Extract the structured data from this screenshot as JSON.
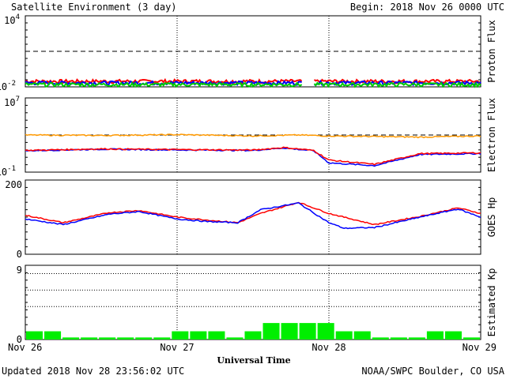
{
  "header": {
    "title": "Satellite Environment (3 day)",
    "begin": "Begin:  2018 Nov 26 0000 UTC"
  },
  "footer": {
    "updated": "Updated 2018 Nov 28 23:56:02 UTC",
    "credit": "NOAA/SWPC Boulder, CO USA"
  },
  "chart_data": {
    "type": "line",
    "xlabel": "Universal Time",
    "x_ticks": [
      "Nov 26",
      "Nov 27",
      "Nov 28",
      "Nov 29"
    ],
    "x_range_days": [
      0,
      3
    ],
    "panels": [
      {
        "name": "proton",
        "ylabel": "Proton Flux",
        "scale": "log",
        "ylim": [
          0.01,
          10000
        ],
        "tick_labels": [
          {
            "mant": "10",
            "exp": "4",
            "value": 10000
          },
          {
            "mant": "10",
            "exp": "-2",
            "value": 0.01
          }
        ],
        "threshold": 10,
        "series": [
          {
            "color": "#ff0000",
            "base": 0.03
          },
          {
            "color": "#0000ff",
            "base": 0.022
          },
          {
            "color": "#00cc00",
            "base": 0.016
          }
        ]
      },
      {
        "name": "electron",
        "ylabel": "Electron Flux",
        "scale": "log",
        "ylim": [
          0.1,
          10000000
        ],
        "tick_labels": [
          {
            "mant": "10",
            "exp": "7",
            "value": 10000000
          },
          {
            "mant": "10",
            "exp": "-1",
            "value": 0.1
          }
        ],
        "threshold": 1000,
        "series": [
          {
            "color": "#ff9900",
            "x": [
              0,
              0.5,
              1.0,
              1.5,
              1.8,
              2.0,
              2.3,
              2.6,
              3.0
            ],
            "y": [
              1000,
              900,
              1100,
              800,
              1000,
              800,
              700,
              600,
              800
            ]
          },
          {
            "color": "#0000ff",
            "x": [
              0,
              0.5,
              1.0,
              1.5,
              1.7,
              1.9,
              2.0,
              2.3,
              2.6,
              3.0
            ],
            "y": [
              20,
              30,
              25,
              22,
              40,
              20,
              1,
              0.5,
              8,
              10
            ]
          },
          {
            "color": "#ff0000",
            "x": [
              0,
              0.5,
              1.0,
              1.5,
              1.7,
              1.9,
              2.0,
              2.3,
              2.6,
              3.0
            ],
            "y": [
              22,
              32,
              27,
              24,
              45,
              22,
              2,
              0.7,
              10,
              12
            ]
          }
        ]
      },
      {
        "name": "goes_hp",
        "ylabel": "GOES Hp",
        "scale": "linear",
        "ylim": [
          0,
          200
        ],
        "tick_labels": [
          {
            "mant": "200",
            "value": 200
          },
          {
            "mant": "0",
            "value": 0
          }
        ],
        "series": [
          {
            "color": "#ff0000",
            "x": [
              0,
              0.25,
              0.55,
              0.75,
              1.0,
              1.2,
              1.4,
              1.55,
              1.8,
              2.0,
              2.3,
              2.6,
              2.85,
              3.0
            ],
            "y": [
              105,
              85,
              112,
              118,
              100,
              92,
              85,
              110,
              140,
              110,
              80,
              102,
              125,
              110
            ]
          },
          {
            "color": "#0000ff",
            "x": [
              0,
              0.25,
              0.55,
              0.75,
              1.0,
              1.2,
              1.4,
              1.55,
              1.8,
              2.0,
              2.1,
              2.3,
              2.6,
              2.85,
              3.0
            ],
            "y": [
              95,
              80,
              108,
              115,
              95,
              88,
              85,
              120,
              138,
              85,
              70,
              72,
              100,
              122,
              100
            ]
          }
        ]
      },
      {
        "name": "kp",
        "ylabel": "Estimated Kp",
        "scale": "linear",
        "ylim": [
          0,
          9
        ],
        "tick_labels": [
          {
            "mant": "9",
            "value": 9
          },
          {
            "mant": "0",
            "value": 0
          }
        ],
        "dotted_levels": [
          4,
          6,
          8
        ],
        "bar_color": "#00ee00",
        "bars": [
          1,
          1,
          0,
          0,
          0,
          0,
          0,
          0,
          1,
          1,
          1,
          0,
          1,
          2,
          2,
          2,
          2,
          1,
          1,
          0,
          0,
          0,
          1,
          1,
          0
        ]
      }
    ]
  }
}
